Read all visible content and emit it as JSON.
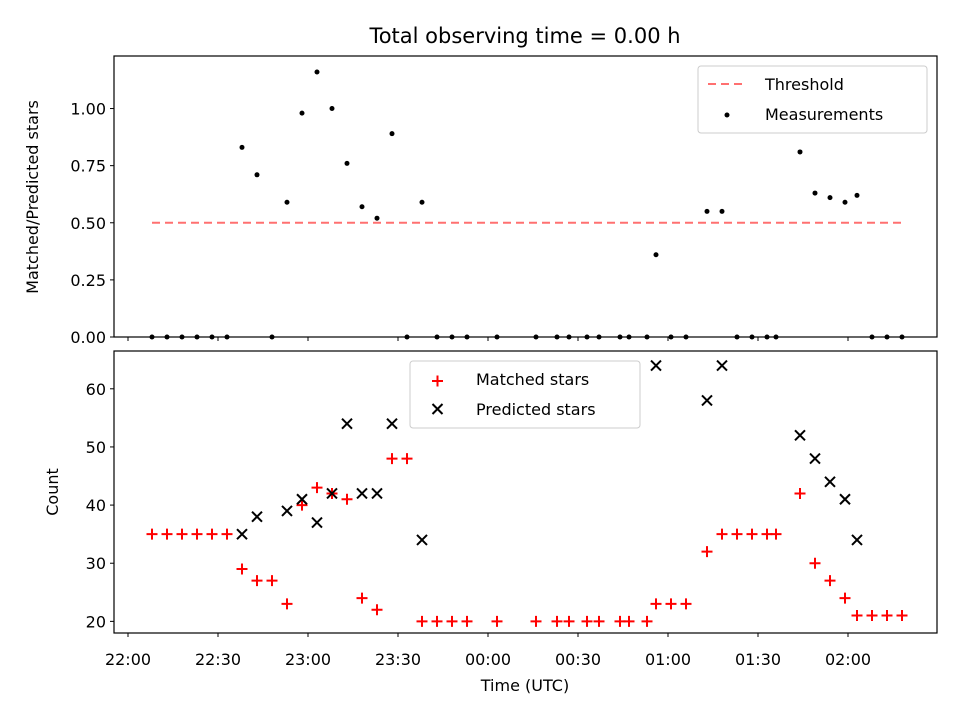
{
  "chart_data": [
    {
      "type": "scatter",
      "title": "Total observing time = 0.00 h",
      "xlabel": "",
      "ylabel": "Matched/Predicted stars",
      "ylim": [
        0,
        1.23
      ],
      "y_ticks": [
        "0.00",
        "0.25",
        "0.50",
        "0.75",
        "1.00"
      ],
      "legend_position": "top-right",
      "threshold": {
        "name": "Threshold",
        "value": 0.5,
        "x_range": [
          "22:08",
          "02:18"
        ],
        "color": "#ff7070",
        "style": "dashed"
      },
      "series": [
        {
          "name": "Measurements",
          "color": "#000000",
          "marker": "dot",
          "points": [
            [
              "22:08",
              0
            ],
            [
              "22:13",
              0
            ],
            [
              "22:18",
              0
            ],
            [
              "22:23",
              0
            ],
            [
              "22:28",
              0
            ],
            [
              "22:33",
              0
            ],
            [
              "22:38",
              0.83
            ],
            [
              "22:43",
              0.71
            ],
            [
              "22:48",
              0
            ],
            [
              "22:53",
              0.59
            ],
            [
              "22:58",
              0.98
            ],
            [
              "23:03",
              1.16
            ],
            [
              "23:08",
              1.0
            ],
            [
              "23:13",
              0.76
            ],
            [
              "23:18",
              0.57
            ],
            [
              "23:23",
              0.52
            ],
            [
              "23:28",
              0.89
            ],
            [
              "23:33",
              0
            ],
            [
              "23:38",
              0.59
            ],
            [
              "23:43",
              0
            ],
            [
              "23:48",
              0
            ],
            [
              "23:53",
              0
            ],
            [
              "00:03",
              0
            ],
            [
              "00:16",
              0
            ],
            [
              "00:23",
              0
            ],
            [
              "00:27",
              0
            ],
            [
              "00:33",
              0
            ],
            [
              "00:37",
              0
            ],
            [
              "00:44",
              0
            ],
            [
              "00:47",
              0
            ],
            [
              "00:53",
              0
            ],
            [
              "00:56",
              0.36
            ],
            [
              "01:01",
              0
            ],
            [
              "01:06",
              0
            ],
            [
              "01:13",
              0.55
            ],
            [
              "01:18",
              0.55
            ],
            [
              "01:23",
              0
            ],
            [
              "01:28",
              0
            ],
            [
              "01:33",
              0
            ],
            [
              "01:36",
              0
            ],
            [
              "01:44",
              0.81
            ],
            [
              "01:49",
              0.63
            ],
            [
              "01:54",
              0.61
            ],
            [
              "01:59",
              0.59
            ],
            [
              "02:03",
              0.62
            ],
            [
              "02:08",
              0
            ],
            [
              "02:13",
              0
            ],
            [
              "02:18",
              0
            ]
          ]
        }
      ]
    },
    {
      "type": "scatter",
      "title": "",
      "xlabel": "Time (UTC)",
      "ylabel": "Count",
      "ylim": [
        18,
        66.5
      ],
      "y_ticks": [
        "20",
        "30",
        "40",
        "50",
        "60"
      ],
      "x_ticks": [
        "22:00",
        "22:30",
        "23:00",
        "23:30",
        "00:00",
        "00:30",
        "01:00",
        "01:30",
        "02:00"
      ],
      "legend_position": "top-center",
      "series": [
        {
          "name": "Matched stars",
          "color": "#ff0000",
          "marker": "plus",
          "points": [
            [
              "22:08",
              35
            ],
            [
              "22:13",
              35
            ],
            [
              "22:18",
              35
            ],
            [
              "22:23",
              35
            ],
            [
              "22:28",
              35
            ],
            [
              "22:33",
              35
            ],
            [
              "22:38",
              29
            ],
            [
              "22:43",
              27
            ],
            [
              "22:48",
              27
            ],
            [
              "22:53",
              23
            ],
            [
              "22:58",
              40
            ],
            [
              "23:03",
              43
            ],
            [
              "23:08",
              42
            ],
            [
              "23:13",
              41
            ],
            [
              "23:18",
              24
            ],
            [
              "23:23",
              22
            ],
            [
              "23:28",
              48
            ],
            [
              "23:33",
              48
            ],
            [
              "23:38",
              20
            ],
            [
              "23:43",
              20
            ],
            [
              "23:48",
              20
            ],
            [
              "23:53",
              20
            ],
            [
              "00:03",
              20
            ],
            [
              "00:16",
              20
            ],
            [
              "00:23",
              20
            ],
            [
              "00:27",
              20
            ],
            [
              "00:33",
              20
            ],
            [
              "00:37",
              20
            ],
            [
              "00:44",
              20
            ],
            [
              "00:47",
              20
            ],
            [
              "00:53",
              20
            ],
            [
              "00:56",
              23
            ],
            [
              "01:01",
              23
            ],
            [
              "01:06",
              23
            ],
            [
              "01:13",
              32
            ],
            [
              "01:18",
              35
            ],
            [
              "01:23",
              35
            ],
            [
              "01:28",
              35
            ],
            [
              "01:33",
              35
            ],
            [
              "01:36",
              35
            ],
            [
              "01:44",
              42
            ],
            [
              "01:49",
              30
            ],
            [
              "01:54",
              27
            ],
            [
              "01:59",
              24
            ],
            [
              "02:03",
              21
            ],
            [
              "02:08",
              21
            ],
            [
              "02:13",
              21
            ],
            [
              "02:18",
              21
            ]
          ]
        },
        {
          "name": "Predicted stars",
          "color": "#000000",
          "marker": "x",
          "points": [
            [
              "22:38",
              35
            ],
            [
              "22:43",
              38
            ],
            [
              "22:53",
              39
            ],
            [
              "22:58",
              41
            ],
            [
              "23:03",
              37
            ],
            [
              "23:08",
              42
            ],
            [
              "23:13",
              54
            ],
            [
              "23:18",
              42
            ],
            [
              "23:23",
              42
            ],
            [
              "23:28",
              54
            ],
            [
              "23:38",
              34
            ],
            [
              "00:56",
              64
            ],
            [
              "01:13",
              58
            ],
            [
              "01:18",
              64
            ],
            [
              "01:44",
              52
            ],
            [
              "01:49",
              48
            ],
            [
              "01:54",
              44
            ],
            [
              "01:59",
              41
            ],
            [
              "02:03",
              34
            ]
          ]
        }
      ]
    }
  ]
}
